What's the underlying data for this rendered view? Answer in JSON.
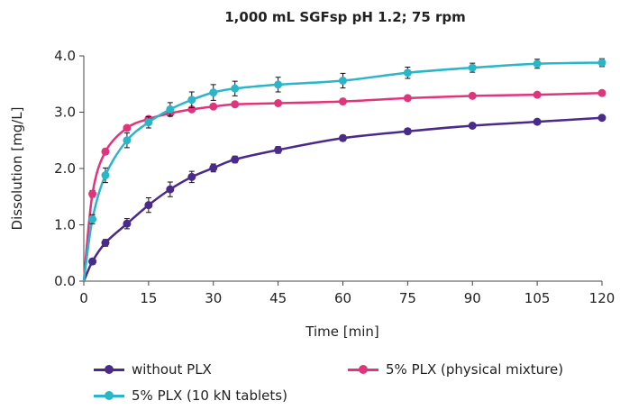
{
  "chart_data": {
    "type": "line",
    "title": "1,000 mL SGFsp pH 1.2; 75 rpm",
    "xlabel": "Time [min]",
    "ylabel": "Dissolution [mg/L]",
    "xlim": [
      0,
      120
    ],
    "ylim": [
      0,
      4
    ],
    "x_ticks": [
      0,
      15,
      30,
      45,
      60,
      75,
      90,
      105,
      120
    ],
    "y_ticks": [
      "0.0",
      "1.0",
      "2.0",
      "3.0",
      "4.0"
    ],
    "grid": false,
    "legend_position": "bottom",
    "series": [
      {
        "name": "without PLX",
        "color": "#4a2a8a",
        "x": [
          0,
          2,
          5,
          10,
          15,
          20,
          25,
          30,
          35,
          45,
          60,
          75,
          90,
          105,
          120
        ],
        "y": [
          0.0,
          0.35,
          0.68,
          1.02,
          1.35,
          1.63,
          1.85,
          2.01,
          2.16,
          2.33,
          2.54,
          2.66,
          2.76,
          2.83,
          2.9
        ],
        "err": [
          0,
          0.05,
          0.06,
          0.09,
          0.13,
          0.13,
          0.1,
          0.07,
          0.06,
          0.06,
          0.05,
          0.05,
          0.04,
          0.04,
          0.04
        ]
      },
      {
        "name": "5% PLX (physical mixture)",
        "color": "#e0357a",
        "x": [
          0,
          2,
          5,
          10,
          15,
          20,
          25,
          30,
          35,
          45,
          60,
          75,
          90,
          105,
          120
        ],
        "y": [
          0.0,
          1.55,
          2.3,
          2.72,
          2.88,
          2.98,
          3.05,
          3.1,
          3.14,
          3.16,
          3.19,
          3.25,
          3.29,
          3.31,
          3.34
        ],
        "err": [
          0,
          0.06,
          0.05,
          0.04,
          0.04,
          0.03,
          0.03,
          0.03,
          0.03,
          0.03,
          0.03,
          0.03,
          0.03,
          0.03,
          0.03
        ]
      },
      {
        "name": "5% PLX (10 kN tablets)",
        "color": "#2ab5c8",
        "x": [
          0,
          2,
          5,
          10,
          15,
          20,
          25,
          30,
          35,
          45,
          60,
          75,
          90,
          105,
          120
        ],
        "y": [
          0.0,
          1.1,
          1.88,
          2.5,
          2.82,
          3.05,
          3.22,
          3.35,
          3.42,
          3.49,
          3.56,
          3.7,
          3.79,
          3.86,
          3.88
        ],
        "err": [
          0,
          0.08,
          0.13,
          0.13,
          0.1,
          0.12,
          0.14,
          0.14,
          0.13,
          0.13,
          0.13,
          0.1,
          0.08,
          0.08,
          0.07
        ]
      }
    ]
  }
}
